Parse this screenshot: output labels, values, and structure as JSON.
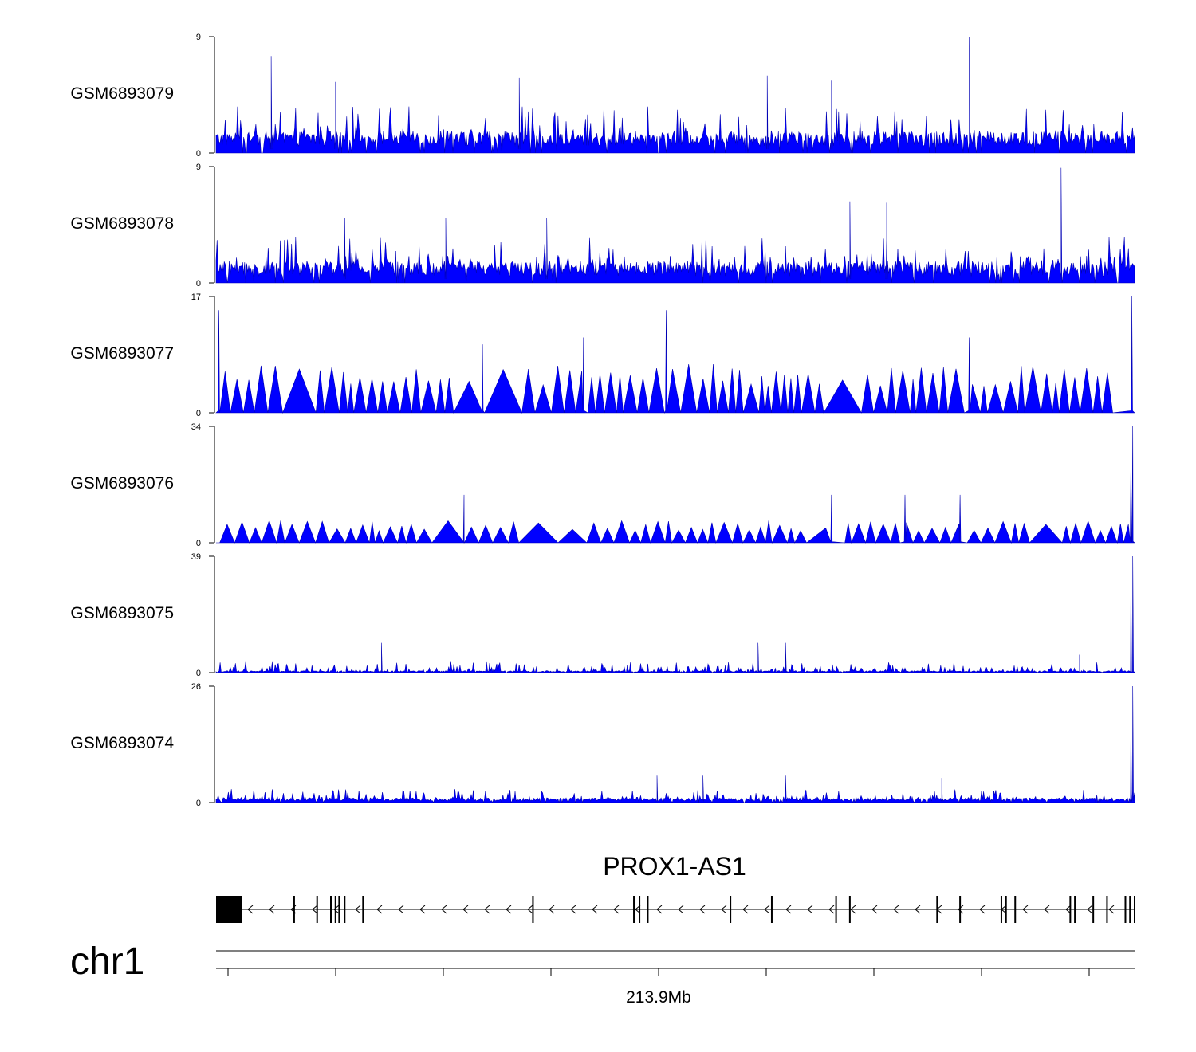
{
  "chart_data": {
    "type": "area",
    "title": "",
    "description_units": "read coverage per genomic position",
    "tracks": [
      {
        "name": "GSM6893079",
        "ymin": 0,
        "ymax": 9,
        "profile": "dense-low",
        "baseline": 1.3,
        "typical_peak": 3,
        "max_peak": 9,
        "peaks": [
          [
            0.06,
            7.5
          ],
          [
            0.82,
            9
          ],
          [
            0.6,
            6
          ],
          [
            0.13,
            5.5
          ],
          [
            0.33,
            5.8
          ],
          [
            0.67,
            5.6
          ]
        ]
      },
      {
        "name": "GSM6893078",
        "ymin": 0,
        "ymax": 9,
        "profile": "dense-low",
        "baseline": 1.3,
        "typical_peak": 3,
        "max_peak": 9,
        "peaks": [
          [
            0.92,
            8.9
          ],
          [
            0.69,
            6.3
          ],
          [
            0.73,
            6.2
          ],
          [
            0.14,
            5
          ],
          [
            0.36,
            5
          ],
          [
            0.25,
            5
          ]
        ]
      },
      {
        "name": "GSM6893077",
        "ymin": 0,
        "ymax": 17,
        "profile": "sparse-triangles",
        "baseline": 0,
        "typical_peak": 5.5,
        "max_peak": 17,
        "peaks": [
          [
            0.003,
            15
          ],
          [
            0.49,
            15
          ],
          [
            0.82,
            11
          ],
          [
            0.997,
            17
          ],
          [
            0.29,
            10
          ],
          [
            0.4,
            11
          ]
        ]
      },
      {
        "name": "GSM6893076",
        "ymin": 0,
        "ymax": 34,
        "profile": "sparse-triangles",
        "baseline": 0,
        "typical_peak": 5,
        "max_peak": 34,
        "peaks": [
          [
            0.27,
            14
          ],
          [
            0.998,
            34
          ],
          [
            0.996,
            24
          ],
          [
            0.75,
            14
          ],
          [
            0.81,
            14
          ],
          [
            0.67,
            14
          ]
        ]
      },
      {
        "name": "GSM6893075",
        "ymin": 0,
        "ymax": 39,
        "profile": "low-with-end-peak",
        "baseline": 0.5,
        "typical_peak": 3,
        "max_peak": 39,
        "peaks": [
          [
            0.998,
            39
          ],
          [
            0.996,
            32
          ],
          [
            0.59,
            10
          ],
          [
            0.62,
            10
          ],
          [
            0.18,
            10
          ],
          [
            0.94,
            6
          ]
        ]
      },
      {
        "name": "GSM6893074",
        "ymin": 0,
        "ymax": 26,
        "profile": "low-with-end-peak",
        "baseline": 0.8,
        "typical_peak": 2.5,
        "max_peak": 26,
        "peaks": [
          [
            0.998,
            26
          ],
          [
            0.996,
            18
          ],
          [
            0.48,
            6
          ],
          [
            0.53,
            6
          ],
          [
            0.62,
            6
          ],
          [
            0.79,
            5.5
          ]
        ]
      }
    ],
    "gene": {
      "name": "PROX1-AS1",
      "strand": "-",
      "exons": [
        0.0,
        0.026,
        0.085,
        0.11,
        0.125,
        0.134,
        0.13,
        0.14,
        0.16,
        0.345,
        0.455,
        0.455,
        0.461,
        0.47,
        0.56,
        0.605,
        0.675,
        0.69,
        0.785,
        0.81,
        0.855,
        0.86,
        0.87,
        0.93,
        0.935,
        0.955,
        0.97,
        0.99,
        0.995,
        1.0
      ]
    },
    "chromosome": "chr1",
    "x_axis": {
      "label": "213.9Mb",
      "major_tick_index": 4,
      "tick_count": 9
    }
  }
}
